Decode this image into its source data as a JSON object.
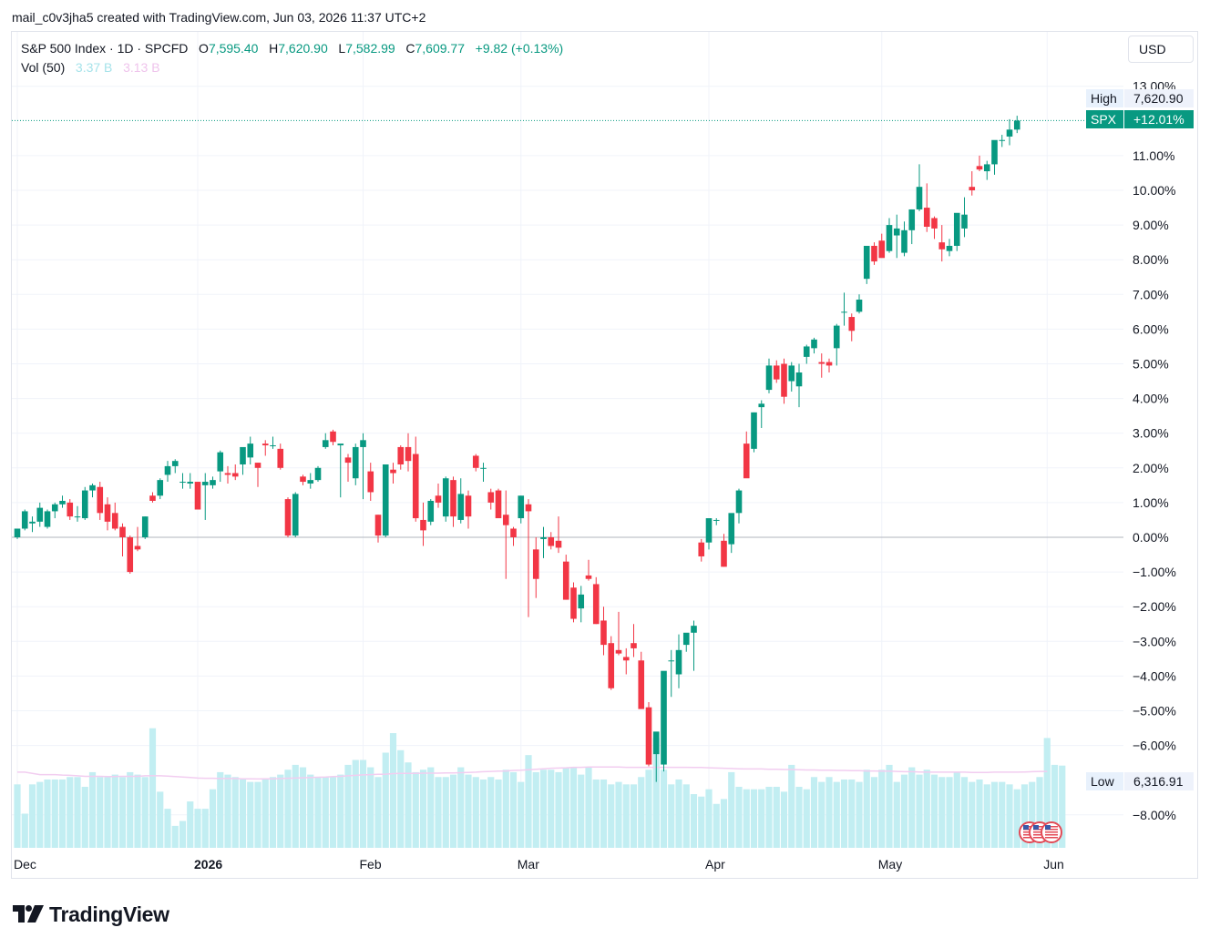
{
  "caption": "mail_c0v3jha5 created with TradingView.com, Jun 03, 2026 11:37 UTC+2",
  "legend": {
    "title": "S&P 500 Index · 1D · SPCFD",
    "o_label": "O",
    "o_value": "7,595.40",
    "h_label": "H",
    "h_value": "7,620.90",
    "l_label": "L",
    "l_value": "7,582.99",
    "c_label": "C",
    "c_value": "7,609.77",
    "change": "+9.82 (+0.13%)",
    "vol_label": "Vol (50)",
    "vol_value1": "3.37 B",
    "vol_value2": "3.13 B"
  },
  "currency": "USD",
  "logo_text": "TradingView",
  "chart_data": {
    "type": "candlestick",
    "symbol": "SPX",
    "y_scale": "percent",
    "y_ticks": [
      "13.00%",
      "11.00%",
      "10.00%",
      "9.00%",
      "8.00%",
      "7.00%",
      "6.00%",
      "5.00%",
      "4.00%",
      "3.00%",
      "2.00%",
      "1.00%",
      "0.00%",
      "−1.00%",
      "−2.00%",
      "−3.00%",
      "−4.00%",
      "−5.00%",
      "−6.00%",
      "−8.00%"
    ],
    "y_range_percent": [
      -8.0,
      13.0
    ],
    "x_labels": [
      {
        "label": "Dec",
        "index": 0
      },
      {
        "label": "2026",
        "index": 24
      },
      {
        "label": "Feb",
        "index": 46
      },
      {
        "label": "Mar",
        "index": 67
      },
      {
        "label": "Apr",
        "index": 92
      },
      {
        "label": "May",
        "index": 115
      },
      {
        "label": "Jun",
        "index": 137
      }
    ],
    "price_labels": {
      "high_label": "High",
      "high_value": "7,620.90",
      "symbol_label": "SPX",
      "symbol_value": "+12.01%",
      "low_label": "Low",
      "low_value": "6,316.91"
    },
    "candles_percent": [
      [
        0.0,
        0.2,
        -0.05,
        0.25
      ],
      [
        0.25,
        0.8,
        0.2,
        0.75
      ],
      [
        0.4,
        0.6,
        0.15,
        0.45
      ],
      [
        0.45,
        1.0,
        0.3,
        0.85
      ],
      [
        0.3,
        0.8,
        0.25,
        0.75
      ],
      [
        0.75,
        1.0,
        0.55,
        0.95
      ],
      [
        0.95,
        1.2,
        0.85,
        1.05
      ],
      [
        1.0,
        1.1,
        0.5,
        0.6
      ],
      [
        0.6,
        0.9,
        0.45,
        0.6
      ],
      [
        0.55,
        1.45,
        0.5,
        1.35
      ],
      [
        1.35,
        1.55,
        1.15,
        1.5
      ],
      [
        1.45,
        1.6,
        0.5,
        0.7
      ],
      [
        0.95,
        1.15,
        0.2,
        0.45
      ],
      [
        0.7,
        1.0,
        0.2,
        0.25
      ],
      [
        0.3,
        0.4,
        -0.55,
        0.0
      ],
      [
        0.0,
        0.05,
        -1.05,
        -1.0
      ],
      [
        -0.25,
        0.3,
        -0.4,
        -0.35
      ],
      [
        0.0,
        0.6,
        -0.05,
        0.6
      ],
      [
        1.2,
        1.3,
        1.0,
        1.05
      ],
      [
        1.2,
        1.7,
        1.1,
        1.65
      ],
      [
        1.8,
        2.2,
        1.6,
        2.05
      ],
      [
        2.05,
        2.25,
        1.85,
        2.2
      ],
      [
        1.6,
        1.85,
        1.4,
        1.6
      ],
      [
        1.55,
        1.85,
        1.4,
        1.6
      ],
      [
        1.6,
        1.6,
        0.8,
        0.8
      ],
      [
        1.5,
        1.85,
        0.5,
        1.6
      ],
      [
        1.5,
        1.75,
        1.4,
        1.65
      ],
      [
        1.9,
        2.5,
        1.6,
        2.45
      ],
      [
        1.85,
        2.05,
        1.55,
        1.8
      ],
      [
        1.85,
        2.1,
        1.65,
        1.75
      ],
      [
        2.1,
        2.6,
        1.8,
        2.6
      ],
      [
        2.3,
        2.9,
        2.1,
        2.7
      ],
      [
        2.15,
        2.15,
        1.45,
        2.0
      ],
      [
        2.7,
        2.8,
        2.35,
        2.65
      ],
      [
        2.65,
        2.9,
        2.55,
        2.65
      ],
      [
        2.55,
        2.7,
        1.95,
        2.0
      ],
      [
        1.1,
        1.15,
        0.0,
        0.05
      ],
      [
        0.05,
        1.3,
        0.0,
        1.25
      ],
      [
        1.75,
        1.8,
        1.5,
        1.6
      ],
      [
        1.55,
        1.85,
        1.4,
        1.65
      ],
      [
        1.65,
        2.05,
        1.6,
        2.0
      ],
      [
        2.6,
        3.0,
        2.55,
        2.8
      ],
      [
        3.05,
        3.1,
        2.65,
        2.75
      ],
      [
        2.65,
        2.65,
        1.15,
        2.7
      ],
      [
        2.3,
        2.4,
        1.6,
        2.15
      ],
      [
        1.7,
        2.7,
        1.5,
        2.6
      ],
      [
        2.6,
        3.0,
        1.1,
        2.8
      ],
      [
        1.9,
        2.15,
        1.05,
        1.3
      ],
      [
        0.65,
        0.65,
        -0.15,
        0.05
      ],
      [
        0.05,
        2.1,
        0.0,
        2.1
      ],
      [
        1.95,
        2.15,
        1.55,
        1.85
      ],
      [
        2.6,
        2.65,
        1.95,
        2.1
      ],
      [
        2.6,
        3.0,
        1.9,
        2.2
      ],
      [
        2.4,
        2.9,
        0.45,
        0.55
      ],
      [
        0.5,
        1.0,
        -0.25,
        0.2
      ],
      [
        0.45,
        1.1,
        0.35,
        1.05
      ],
      [
        1.2,
        1.55,
        0.85,
        1.0
      ],
      [
        0.6,
        1.75,
        0.45,
        1.7
      ],
      [
        1.65,
        1.75,
        0.3,
        0.6
      ],
      [
        0.5,
        1.7,
        0.4,
        1.25
      ],
      [
        1.2,
        1.35,
        0.25,
        0.6
      ],
      [
        2.35,
        2.4,
        1.9,
        2.0
      ],
      [
        2.0,
        2.15,
        1.6,
        2.0
      ],
      [
        1.3,
        1.4,
        0.8,
        1.0
      ],
      [
        1.35,
        1.4,
        0.65,
        0.55
      ],
      [
        0.65,
        1.35,
        -1.2,
        0.35
      ],
      [
        0.25,
        0.3,
        -0.25,
        0.0
      ],
      [
        0.55,
        1.2,
        0.4,
        1.2
      ],
      [
        0.95,
        1.1,
        -2.3,
        0.75
      ],
      [
        -0.35,
        0.0,
        -1.75,
        -1.2
      ],
      [
        -0.05,
        0.3,
        -0.6,
        0.0
      ],
      [
        0.0,
        0.15,
        -0.35,
        -0.25
      ],
      [
        -0.1,
        0.6,
        -0.45,
        -0.3
      ],
      [
        -0.7,
        -0.5,
        -1.8,
        -1.8
      ],
      [
        -1.45,
        -1.3,
        -2.45,
        -2.35
      ],
      [
        -2.05,
        -1.4,
        -2.45,
        -1.65
      ],
      [
        -1.1,
        -0.65,
        -1.25,
        -1.2
      ],
      [
        -1.35,
        -1.15,
        -2.5,
        -2.5
      ],
      [
        -2.4,
        -2.0,
        -3.4,
        -3.1
      ],
      [
        -3.05,
        -2.85,
        -4.4,
        -4.35
      ],
      [
        -3.25,
        -2.15,
        -3.4,
        -3.35
      ],
      [
        -3.45,
        -3.2,
        -3.95,
        -3.55
      ],
      [
        -3.05,
        -2.5,
        -3.45,
        -3.2
      ],
      [
        -3.55,
        -3.3,
        -4.95,
        -4.95
      ],
      [
        -4.9,
        -4.75,
        -6.6,
        -6.55
      ],
      [
        -6.25,
        -5.7,
        -7.05,
        -5.6
      ],
      [
        -6.55,
        -4.55,
        -6.75,
        -3.85
      ],
      [
        -3.55,
        -3.25,
        -4.6,
        -3.55
      ],
      [
        -3.95,
        -2.8,
        -4.35,
        -3.25
      ],
      [
        -3.1,
        -2.8,
        -3.3,
        -2.75
      ],
      [
        -2.75,
        -2.4,
        -3.85,
        -2.55
      ],
      [
        -0.15,
        -0.05,
        -0.7,
        -0.55
      ],
      [
        -0.15,
        0.1,
        -0.35,
        0.55
      ],
      [
        0.5,
        0.55,
        0.35,
        0.5
      ],
      [
        -0.1,
        0.1,
        -0.85,
        -0.85
      ],
      [
        -0.2,
        0.3,
        -0.45,
        0.7
      ],
      [
        0.7,
        1.4,
        0.4,
        1.35
      ],
      [
        2.7,
        3.05,
        2.55,
        1.7
      ],
      [
        2.55,
        3.6,
        2.45,
        3.6
      ],
      [
        3.75,
        3.95,
        3.15,
        3.85
      ],
      [
        4.25,
        5.15,
        4.15,
        4.95
      ],
      [
        4.95,
        5.1,
        4.45,
        4.55
      ],
      [
        5.0,
        5.15,
        3.85,
        4.05
      ],
      [
        4.5,
        5.05,
        4.2,
        4.95
      ],
      [
        4.35,
        5.0,
        3.75,
        4.75
      ],
      [
        5.2,
        5.55,
        5.0,
        5.5
      ],
      [
        5.45,
        5.75,
        5.3,
        5.7
      ],
      [
        5.05,
        5.3,
        4.6,
        5.0
      ],
      [
        5.05,
        5.15,
        4.75,
        4.95
      ],
      [
        5.45,
        6.15,
        4.95,
        6.1
      ],
      [
        6.5,
        7.05,
        6.1,
        6.5
      ],
      [
        6.35,
        6.45,
        5.65,
        5.95
      ],
      [
        6.5,
        7.0,
        6.45,
        6.85
      ],
      [
        7.45,
        8.35,
        7.3,
        8.4
      ],
      [
        8.4,
        8.5,
        7.85,
        7.95
      ],
      [
        8.55,
        8.75,
        8.45,
        8.05
      ],
      [
        8.25,
        9.2,
        8.2,
        9.0
      ],
      [
        8.7,
        9.3,
        8.05,
        8.9
      ],
      [
        8.2,
        9.1,
        8.1,
        8.85
      ],
      [
        8.85,
        9.45,
        8.45,
        9.45
      ],
      [
        9.45,
        10.75,
        9.4,
        10.1
      ],
      [
        9.5,
        10.2,
        8.8,
        8.95
      ],
      [
        9.2,
        9.25,
        8.6,
        8.9
      ],
      [
        8.5,
        9.0,
        7.95,
        8.3
      ],
      [
        8.25,
        8.6,
        8.1,
        8.4
      ],
      [
        8.4,
        9.3,
        8.25,
        9.35
      ],
      [
        8.9,
        9.8,
        8.65,
        9.3
      ],
      [
        10.1,
        10.55,
        9.85,
        10.0
      ],
      [
        10.7,
        11.0,
        10.55,
        10.6
      ],
      [
        10.55,
        10.85,
        10.3,
        10.75
      ],
      [
        10.75,
        11.05,
        10.45,
        11.45
      ],
      [
        11.45,
        11.6,
        11.25,
        11.45
      ],
      [
        11.55,
        12.05,
        11.3,
        11.75
      ],
      [
        11.75,
        12.15,
        11.65,
        12.01
      ]
    ],
    "volume_billions": [
      2.6,
      1.4,
      2.6,
      2.7,
      2.8,
      2.8,
      2.8,
      2.9,
      2.9,
      2.5,
      3.1,
      2.9,
      2.9,
      3.0,
      2.9,
      3.1,
      3.0,
      2.9,
      4.9,
      2.3,
      1.6,
      0.9,
      1.1,
      1.9,
      1.6,
      1.6,
      2.4,
      3.1,
      3.0,
      2.9,
      2.8,
      2.7,
      2.7,
      2.8,
      2.9,
      3.0,
      3.2,
      3.4,
      3.3,
      3.0,
      2.9,
      2.9,
      2.9,
      3.0,
      3.4,
      3.6,
      3.6,
      3.3,
      2.9,
      3.9,
      4.7,
      4.0,
      3.5,
      3.1,
      3.2,
      3.3,
      2.9,
      2.9,
      3.0,
      3.3,
      3.0,
      2.9,
      2.8,
      2.9,
      2.8,
      3.2,
      3.1,
      2.7,
      3.8,
      3.1,
      3.2,
      3.2,
      3.1,
      3.3,
      3.3,
      3.0,
      3.3,
      2.8,
      2.8,
      2.6,
      2.7,
      2.6,
      2.6,
      2.9,
      3.2,
      4.5,
      3.2,
      2.6,
      2.8,
      2.6,
      2.2,
      2.1,
      2.4,
      1.8,
      2.0,
      3.1,
      2.5,
      2.4,
      2.4,
      2.4,
      2.5,
      2.5,
      2.3,
      3.4,
      2.5,
      2.4,
      2.9,
      2.7,
      2.9,
      2.7,
      2.8,
      2.8,
      2.7,
      3.2,
      2.9,
      3.2,
      3.4,
      2.7,
      3.0,
      3.3,
      3.0,
      3.2,
      3.0,
      2.9,
      2.9,
      3.1,
      2.9,
      2.7,
      2.8,
      2.6,
      2.7,
      2.7,
      2.6,
      2.4,
      2.6,
      2.7,
      2.9,
      4.5,
      3.4,
      3.37
    ],
    "volume_ma_billions": [
      3.1,
      3.1,
      3.05,
      3.0,
      3.0,
      3.0,
      2.98,
      2.97,
      2.95,
      2.93,
      2.93,
      2.93,
      2.92,
      2.92,
      2.93,
      2.93,
      2.93,
      2.95,
      2.95,
      2.95,
      2.94,
      2.92,
      2.9,
      2.88,
      2.86,
      2.85,
      2.85,
      2.84,
      2.84,
      2.84,
      2.83,
      2.83,
      2.82,
      2.83,
      2.83,
      2.84,
      2.85,
      2.86,
      2.87,
      2.88,
      2.89,
      2.9,
      2.92,
      2.93,
      2.95,
      2.97,
      2.99,
      3.0,
      3.01,
      3.02,
      3.04,
      3.05,
      3.05,
      3.05,
      3.06,
      3.06,
      3.06,
      3.07,
      3.07,
      3.08,
      3.09,
      3.1,
      3.12,
      3.13,
      3.14,
      3.15,
      3.17,
      3.18,
      3.2,
      3.22,
      3.24,
      3.26,
      3.27,
      3.28,
      3.3,
      3.3,
      3.31,
      3.31,
      3.31,
      3.31,
      3.31,
      3.3,
      3.3,
      3.3,
      3.3,
      3.3,
      3.3,
      3.3,
      3.3,
      3.3,
      3.29,
      3.29,
      3.28,
      3.27,
      3.26,
      3.25,
      3.24,
      3.23,
      3.23,
      3.23,
      3.22,
      3.22,
      3.21,
      3.21,
      3.2,
      3.19,
      3.19,
      3.18,
      3.18,
      3.17,
      3.17,
      3.16,
      3.16,
      3.15,
      3.15,
      3.14,
      3.14,
      3.13,
      3.12,
      3.12,
      3.11,
      3.1,
      3.1,
      3.1,
      3.1,
      3.1,
      3.1,
      3.09,
      3.09,
      3.09,
      3.1,
      3.1,
      3.1,
      3.1,
      3.11,
      3.12,
      3.13,
      3.13
    ],
    "colors": {
      "up": "#089981",
      "down": "#f23645",
      "volume": "#c2eef2",
      "volume_ma": "#f2cdf0",
      "grid": "#f0f3fa",
      "zero_line": "#b2b5be"
    }
  }
}
